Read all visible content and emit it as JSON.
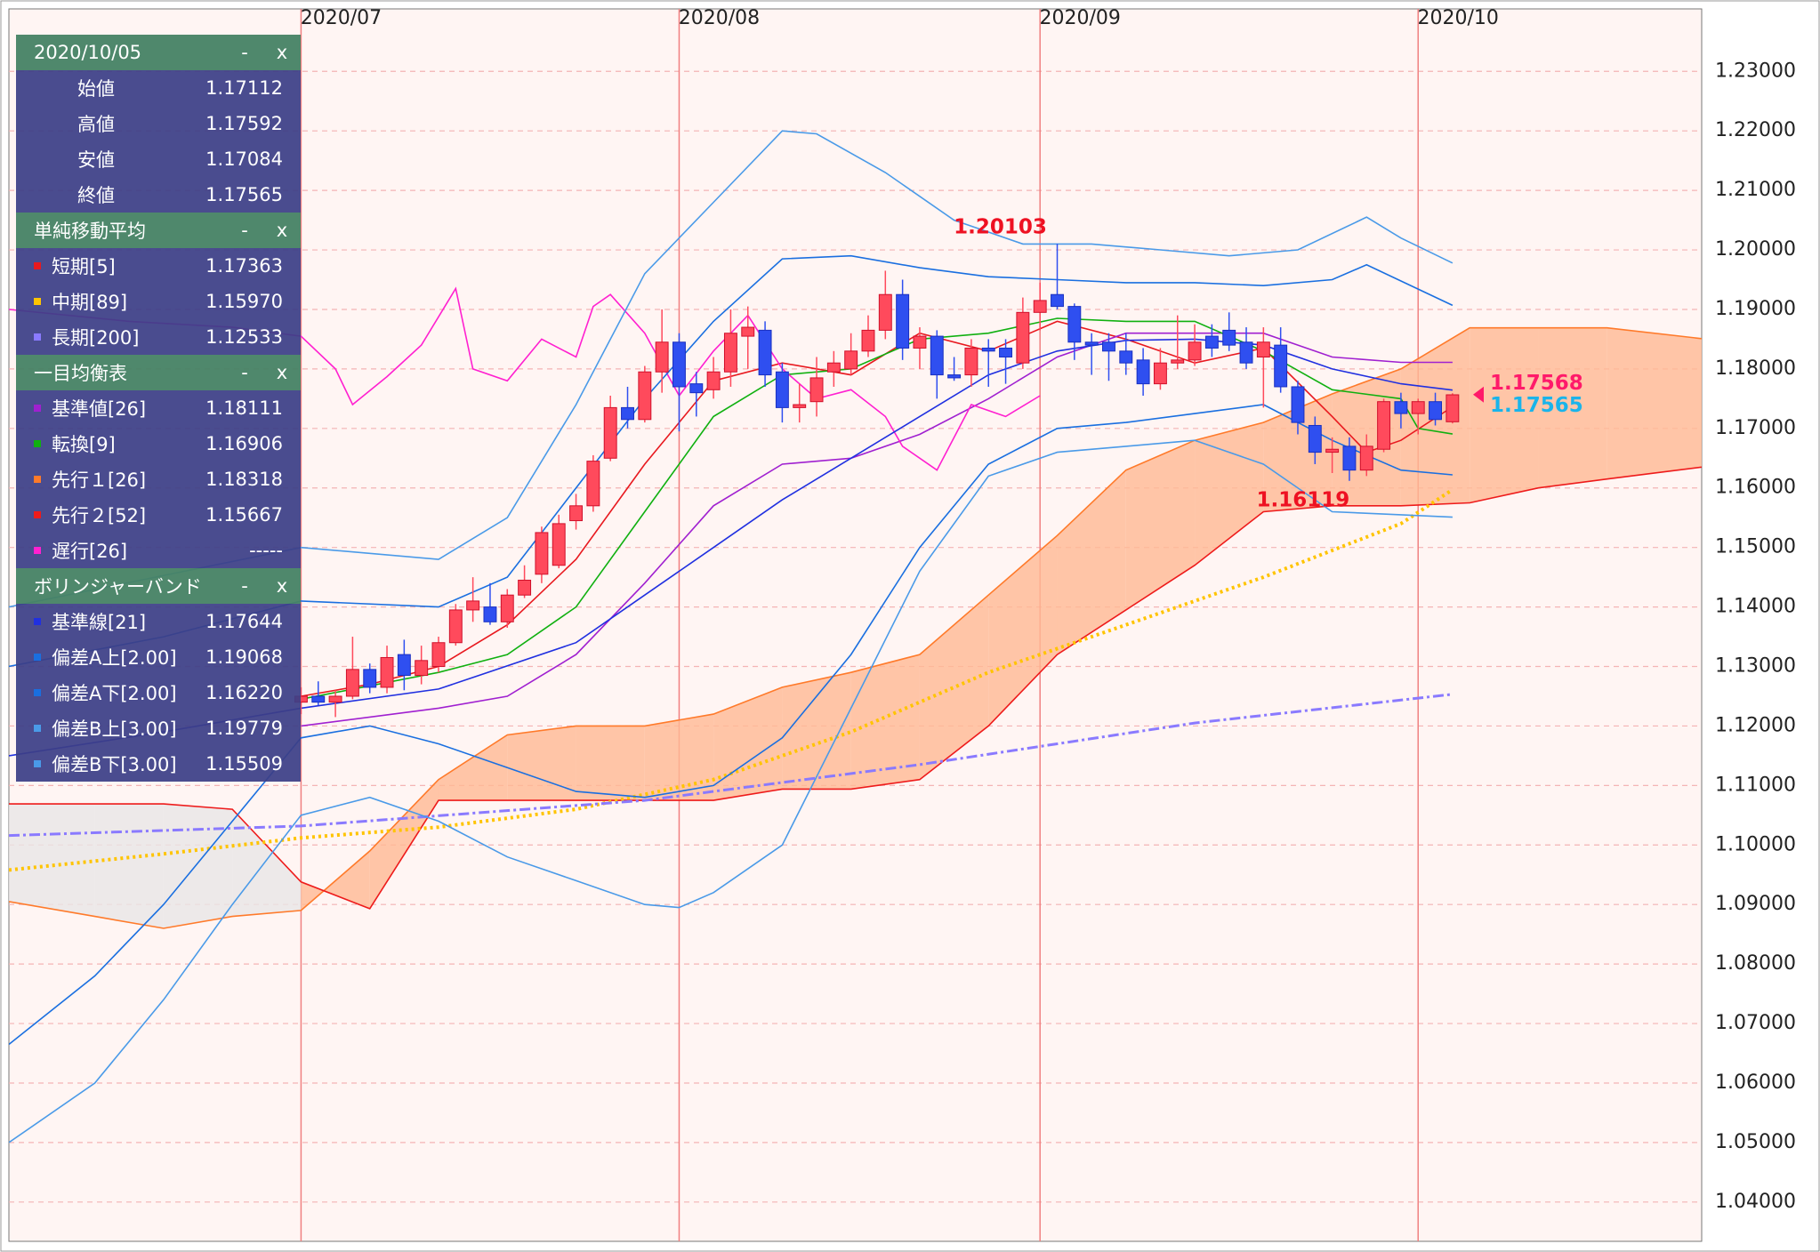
{
  "chart_data": {
    "type": "candlestick",
    "xlim": [
      -17,
      81.5
    ],
    "xticks": [
      {
        "value": 0,
        "label": "2020/07"
      },
      {
        "value": 22,
        "label": "2020/08"
      },
      {
        "value": 43,
        "label": "2020/09"
      },
      {
        "value": 65,
        "label": "2020/10"
      }
    ],
    "ylim": [
      1.0334,
      1.2405
    ],
    "yticks": [
      {
        "value": 1.04,
        "label": "1.04000"
      },
      {
        "value": 1.05,
        "label": "1.05000"
      },
      {
        "value": 1.06,
        "label": "1.06000"
      },
      {
        "value": 1.07,
        "label": "1.07000"
      },
      {
        "value": 1.08,
        "label": "1.08000"
      },
      {
        "value": 1.09,
        "label": "1.09000"
      },
      {
        "value": 1.1,
        "label": "1.10000"
      },
      {
        "value": 1.11,
        "label": "1.11000"
      },
      {
        "value": 1.12,
        "label": "1.12000"
      },
      {
        "value": 1.13,
        "label": "1.13000"
      },
      {
        "value": 1.14,
        "label": "1.14000"
      },
      {
        "value": 1.15,
        "label": "1.15000"
      },
      {
        "value": 1.16,
        "label": "1.16000"
      },
      {
        "value": 1.17,
        "label": "1.17000"
      },
      {
        "value": 1.18,
        "label": "1.18000"
      },
      {
        "value": 1.19,
        "label": "1.19000"
      },
      {
        "value": 1.2,
        "label": "1.20000"
      },
      {
        "value": 1.21,
        "label": "1.21000"
      },
      {
        "value": 1.22,
        "label": "1.22000"
      },
      {
        "value": 1.23,
        "label": "1.23000"
      }
    ],
    "grid": true,
    "candles": {
      "up_color": "#ff4a5c",
      "down_color": "#2f4ff0",
      "x": [
        0,
        1,
        2,
        3,
        4,
        5,
        6,
        7,
        8,
        9,
        10,
        11,
        12,
        13,
        14,
        15,
        16,
        17,
        18,
        19,
        20,
        21,
        22,
        23,
        24,
        25,
        26,
        27,
        28,
        29,
        30,
        31,
        32,
        33,
        34,
        35,
        36,
        37,
        38,
        39,
        40,
        41,
        42,
        43,
        44,
        45,
        46,
        47,
        48,
        49,
        50,
        51,
        52,
        53,
        54,
        55,
        56,
        57,
        58,
        59,
        60,
        61,
        62,
        63,
        64,
        65,
        66,
        67
      ],
      "open": [
        1.124,
        1.125,
        1.124,
        1.125,
        1.1295,
        1.1265,
        1.132,
        1.1285,
        1.13,
        1.134,
        1.1395,
        1.14,
        1.1375,
        1.142,
        1.1455,
        1.147,
        1.1545,
        1.157,
        1.165,
        1.1735,
        1.1715,
        1.1795,
        1.1845,
        1.1775,
        1.1765,
        1.1795,
        1.1855,
        1.1865,
        1.1795,
        1.1735,
        1.1745,
        1.1795,
        1.18,
        1.183,
        1.1865,
        1.1925,
        1.1835,
        1.1855,
        1.179,
        1.179,
        1.1835,
        1.1835,
        1.181,
        1.1895,
        1.1925,
        1.1905,
        1.1845,
        1.1845,
        1.183,
        1.1815,
        1.1775,
        1.181,
        1.1815,
        1.1855,
        1.1865,
        1.1845,
        1.182,
        1.184,
        1.177,
        1.1705,
        1.166,
        1.167,
        1.163,
        1.1665,
        1.1745,
        1.1725,
        1.1745,
        1.17112
      ],
      "high": [
        1.1265,
        1.1275,
        1.126,
        1.135,
        1.1305,
        1.1335,
        1.1345,
        1.1335,
        1.135,
        1.1405,
        1.145,
        1.144,
        1.143,
        1.147,
        1.1535,
        1.1555,
        1.159,
        1.1655,
        1.1755,
        1.177,
        1.1805,
        1.19,
        1.186,
        1.1795,
        1.182,
        1.19,
        1.1905,
        1.188,
        1.181,
        1.1775,
        1.182,
        1.183,
        1.186,
        1.189,
        1.1965,
        1.195,
        1.187,
        1.1865,
        1.182,
        1.185,
        1.185,
        1.185,
        1.192,
        1.1945,
        1.20103,
        1.191,
        1.186,
        1.186,
        1.186,
        1.1835,
        1.1835,
        1.189,
        1.1875,
        1.1875,
        1.1895,
        1.187,
        1.187,
        1.187,
        1.178,
        1.172,
        1.1685,
        1.1685,
        1.169,
        1.175,
        1.176,
        1.175,
        1.176,
        1.17592
      ],
      "low": [
        1.122,
        1.1235,
        1.1215,
        1.1245,
        1.1255,
        1.1255,
        1.126,
        1.127,
        1.129,
        1.1335,
        1.1375,
        1.137,
        1.1365,
        1.1415,
        1.144,
        1.1465,
        1.153,
        1.156,
        1.1645,
        1.17,
        1.171,
        1.176,
        1.1695,
        1.172,
        1.175,
        1.177,
        1.18,
        1.177,
        1.171,
        1.171,
        1.172,
        1.177,
        1.179,
        1.182,
        1.185,
        1.1815,
        1.18,
        1.175,
        1.178,
        1.177,
        1.177,
        1.1775,
        1.18,
        1.1865,
        1.19,
        1.1815,
        1.179,
        1.178,
        1.179,
        1.1755,
        1.1765,
        1.18,
        1.1805,
        1.182,
        1.183,
        1.18,
        1.1735,
        1.176,
        1.169,
        1.164,
        1.1625,
        1.16119,
        1.162,
        1.166,
        1.17,
        1.169,
        1.1705,
        1.17084
      ],
      "close": [
        1.125,
        1.124,
        1.125,
        1.1295,
        1.1265,
        1.1315,
        1.1285,
        1.131,
        1.134,
        1.1395,
        1.141,
        1.1375,
        1.142,
        1.1445,
        1.1525,
        1.154,
        1.157,
        1.1645,
        1.1735,
        1.1715,
        1.1795,
        1.1845,
        1.177,
        1.176,
        1.1795,
        1.186,
        1.187,
        1.179,
        1.1735,
        1.174,
        1.1785,
        1.181,
        1.183,
        1.1865,
        1.1925,
        1.1835,
        1.1855,
        1.179,
        1.1785,
        1.1835,
        1.183,
        1.182,
        1.1895,
        1.1915,
        1.1905,
        1.1845,
        1.184,
        1.183,
        1.181,
        1.1775,
        1.181,
        1.1815,
        1.1845,
        1.1835,
        1.184,
        1.181,
        1.1845,
        1.177,
        1.171,
        1.166,
        1.1665,
        1.163,
        1.167,
        1.1745,
        1.1725,
        1.1745,
        1.1715,
        1.17565
      ]
    },
    "cloud": {
      "up_color": "#ffb994",
      "down_color": "#e9e6e6",
      "span_a_color": "#ff7a2a",
      "span_b_color": "#ee1b1b",
      "x": [
        -17,
        -12,
        -8,
        -4,
        0,
        4,
        8,
        12,
        16,
        20,
        24,
        28,
        32,
        36,
        40,
        44,
        48,
        52,
        56,
        60,
        64,
        68,
        72,
        76,
        81.5
      ],
      "span_a": [
        1.0905,
        1.088,
        1.086,
        1.088,
        1.089,
        1.099,
        1.111,
        1.1185,
        1.12,
        1.12,
        1.122,
        1.1265,
        1.129,
        1.132,
        1.142,
        1.152,
        1.163,
        1.168,
        1.171,
        1.1758,
        1.18,
        1.1869,
        1.1869,
        1.1869,
        1.1851
      ],
      "span_b": [
        1.1069,
        1.1069,
        1.1069,
        1.106,
        1.0938,
        1.0893,
        1.1075,
        1.1075,
        1.1075,
        1.1075,
        1.1075,
        1.1094,
        1.1094,
        1.111,
        1.12,
        1.132,
        1.1395,
        1.147,
        1.156,
        1.157,
        1.157,
        1.1575,
        1.16,
        1.1615,
        1.1635
      ]
    },
    "lines": [
      {
        "color": "#e8191f",
        "style": "solid",
        "x": [
          0,
          4,
          8,
          12,
          16,
          20,
          24,
          28,
          32,
          36,
          40,
          44,
          48,
          52,
          56,
          60,
          62,
          64,
          67
        ],
        "values": [
          1.125,
          1.127,
          1.13,
          1.137,
          1.148,
          1.164,
          1.178,
          1.181,
          1.179,
          1.186,
          1.183,
          1.188,
          1.185,
          1.181,
          1.1835,
          1.172,
          1.166,
          1.168,
          1.17363
        ]
      },
      {
        "color": "#ffc400",
        "style": "dotted",
        "x": [
          -17,
          -8,
          0,
          8,
          16,
          24,
          32,
          40,
          48,
          56,
          64,
          67
        ],
        "values": [
          1.0958,
          1.0985,
          1.1012,
          1.103,
          1.106,
          1.111,
          1.119,
          1.129,
          1.137,
          1.145,
          1.154,
          1.1597
        ]
      },
      {
        "color": "#8a7aff",
        "style": "dashdot",
        "x": [
          -17,
          0,
          20,
          36,
          52,
          67
        ],
        "values": [
          1.1016,
          1.1032,
          1.1075,
          1.1135,
          1.1205,
          1.12533
        ]
      },
      {
        "color": "#a020d0",
        "style": "solid",
        "x": [
          0,
          8,
          12,
          16,
          20,
          24,
          28,
          32,
          36,
          40,
          44,
          48,
          52,
          56,
          60,
          64,
          67
        ],
        "values": [
          1.12,
          1.123,
          1.125,
          1.132,
          1.144,
          1.157,
          1.164,
          1.165,
          1.169,
          1.175,
          1.182,
          1.186,
          1.186,
          1.186,
          1.182,
          1.18111,
          1.18111
        ]
      },
      {
        "color": "#10b010",
        "style": "solid",
        "x": [
          0,
          8,
          12,
          16,
          20,
          24,
          28,
          32,
          36,
          40,
          44,
          48,
          52,
          56,
          60,
          64,
          65,
          67
        ],
        "values": [
          1.1245,
          1.129,
          1.132,
          1.14,
          1.156,
          1.172,
          1.179,
          1.18,
          1.185,
          1.186,
          1.1885,
          1.188,
          1.188,
          1.183,
          1.1765,
          1.175,
          1.17,
          1.16906
        ]
      },
      {
        "color": "#ff20d0",
        "style": "solid",
        "x": [
          -17,
          -10,
          -4,
          0,
          2,
          3,
          5,
          7,
          9,
          10,
          12,
          14,
          16,
          17,
          18,
          20,
          22,
          24,
          26,
          28,
          30,
          32,
          34,
          35,
          37,
          39,
          41,
          43
        ],
        "values": [
          1.19,
          1.188,
          1.187,
          1.1855,
          1.18,
          1.174,
          1.1787,
          1.184,
          1.1935,
          1.18,
          1.178,
          1.185,
          1.182,
          1.1905,
          1.1925,
          1.186,
          1.1755,
          1.183,
          1.189,
          1.18,
          1.175,
          1.1765,
          1.172,
          1.167,
          1.163,
          1.174,
          1.172,
          1.1755
        ]
      },
      {
        "color": "#2030e0",
        "style": "solid",
        "x": [
          -17,
          -8,
          0,
          8,
          16,
          20,
          24,
          28,
          32,
          36,
          40,
          44,
          48,
          52,
          56,
          60,
          64,
          67
        ],
        "values": [
          1.115,
          1.119,
          1.123,
          1.1262,
          1.134,
          1.142,
          1.15,
          1.158,
          1.165,
          1.172,
          1.179,
          1.183,
          1.1848,
          1.185,
          1.184,
          1.18,
          1.1775,
          1.17644
        ]
      },
      {
        "color": "#1a6fe0",
        "style": "solid",
        "x": [
          -17,
          -8,
          0,
          8,
          12,
          16,
          20,
          24,
          28,
          32,
          36,
          40,
          44,
          48,
          52,
          56,
          60,
          62,
          67
        ],
        "values": [
          1.13,
          1.135,
          1.141,
          1.14,
          1.145,
          1.16,
          1.175,
          1.188,
          1.1985,
          1.199,
          1.197,
          1.1955,
          1.195,
          1.1945,
          1.1945,
          1.194,
          1.195,
          1.1975,
          1.19068
        ]
      },
      {
        "color": "#1a6fe0",
        "style": "solid",
        "x": [
          -17,
          -12,
          -8,
          -4,
          0,
          4,
          8,
          12,
          16,
          20,
          24,
          28,
          32,
          36,
          40,
          44,
          48,
          52,
          56,
          60,
          64,
          67
        ],
        "values": [
          1.0665,
          1.078,
          1.09,
          1.104,
          1.118,
          1.12,
          1.117,
          1.113,
          1.109,
          1.108,
          1.11,
          1.118,
          1.132,
          1.15,
          1.164,
          1.17,
          1.171,
          1.1725,
          1.174,
          1.168,
          1.163,
          1.1622
        ]
      },
      {
        "color": "#4a9ae8",
        "style": "solid",
        "x": [
          -17,
          0,
          8,
          12,
          16,
          20,
          24,
          28,
          30,
          34,
          38,
          42,
          46,
          50,
          54,
          58,
          62,
          64,
          67
        ],
        "values": [
          1.14,
          1.15,
          1.148,
          1.155,
          1.174,
          1.196,
          1.208,
          1.22,
          1.2195,
          1.213,
          1.205,
          1.201,
          1.201,
          1.2,
          1.199,
          1.2,
          1.2055,
          1.202,
          1.19779
        ]
      },
      {
        "color": "#4a9ae8",
        "style": "solid",
        "x": [
          -17,
          -12,
          -8,
          -4,
          0,
          4,
          8,
          12,
          16,
          20,
          22,
          24,
          28,
          32,
          36,
          40,
          44,
          48,
          52,
          56,
          60,
          64,
          67
        ],
        "values": [
          1.05,
          1.06,
          1.074,
          1.09,
          1.105,
          1.108,
          1.104,
          1.098,
          1.094,
          1.09,
          1.0895,
          1.092,
          1.1,
          1.123,
          1.146,
          1.162,
          1.166,
          1.167,
          1.168,
          1.164,
          1.156,
          1.1555,
          1.15509
        ]
      }
    ],
    "annotations": [
      {
        "x": 44,
        "value": 1.20103,
        "label": "1.20103",
        "side": "above",
        "color": "#ee1122"
      },
      {
        "x": 61,
        "value": 1.16119,
        "label": "1.16119",
        "side": "below",
        "color": "#ee1122"
      }
    ],
    "price_tags": [
      {
        "value": 1.17568,
        "label": "1.17568",
        "color": "#ff1a6a"
      },
      {
        "value": 1.17565,
        "label": "1.17565",
        "color": "#1ab4ea"
      }
    ]
  },
  "legend_panel": {
    "minimize": "-",
    "close": "x",
    "sections": [
      {
        "title": "2020/10/05",
        "rows": [
          {
            "label": "始値",
            "value": "1.17112"
          },
          {
            "label": "高値",
            "value": "1.17592"
          },
          {
            "label": "安値",
            "value": "1.17084"
          },
          {
            "label": "終値",
            "value": "1.17565"
          }
        ]
      },
      {
        "title": "単純移動平均",
        "rows": [
          {
            "label": "短期[5]",
            "value": "1.17363",
            "color": "#e8191f"
          },
          {
            "label": "中期[89]",
            "value": "1.15970",
            "color": "#ffc400"
          },
          {
            "label": "長期[200]",
            "value": "1.12533",
            "color": "#8a7aff"
          }
        ]
      },
      {
        "title": "一目均衡表",
        "rows": [
          {
            "label": "基準値[26]",
            "value": "1.18111",
            "color": "#a020d0"
          },
          {
            "label": "転換[9]",
            "value": "1.16906",
            "color": "#10b010"
          },
          {
            "label": "先行１[26]",
            "value": "1.18318",
            "color": "#ff7a2a"
          },
          {
            "label": "先行２[52]",
            "value": "1.15667",
            "color": "#ee1b1b"
          },
          {
            "label": "遅行[26]",
            "value": "-----",
            "color": "#ff20d0"
          }
        ]
      },
      {
        "title": "ボリンジャーバンド",
        "rows": [
          {
            "label": "基準線[21]",
            "value": "1.17644",
            "color": "#2030e0"
          },
          {
            "label": "偏差A上[2.00]",
            "value": "1.19068",
            "color": "#1a6fe0"
          },
          {
            "label": "偏差A下[2.00]",
            "value": "1.16220",
            "color": "#1a6fe0"
          },
          {
            "label": "偏差B上[3.00]",
            "value": "1.19779",
            "color": "#4a9ae8"
          },
          {
            "label": "偏差B下[3.00]",
            "value": "1.15509",
            "color": "#4a9ae8"
          }
        ]
      }
    ]
  }
}
